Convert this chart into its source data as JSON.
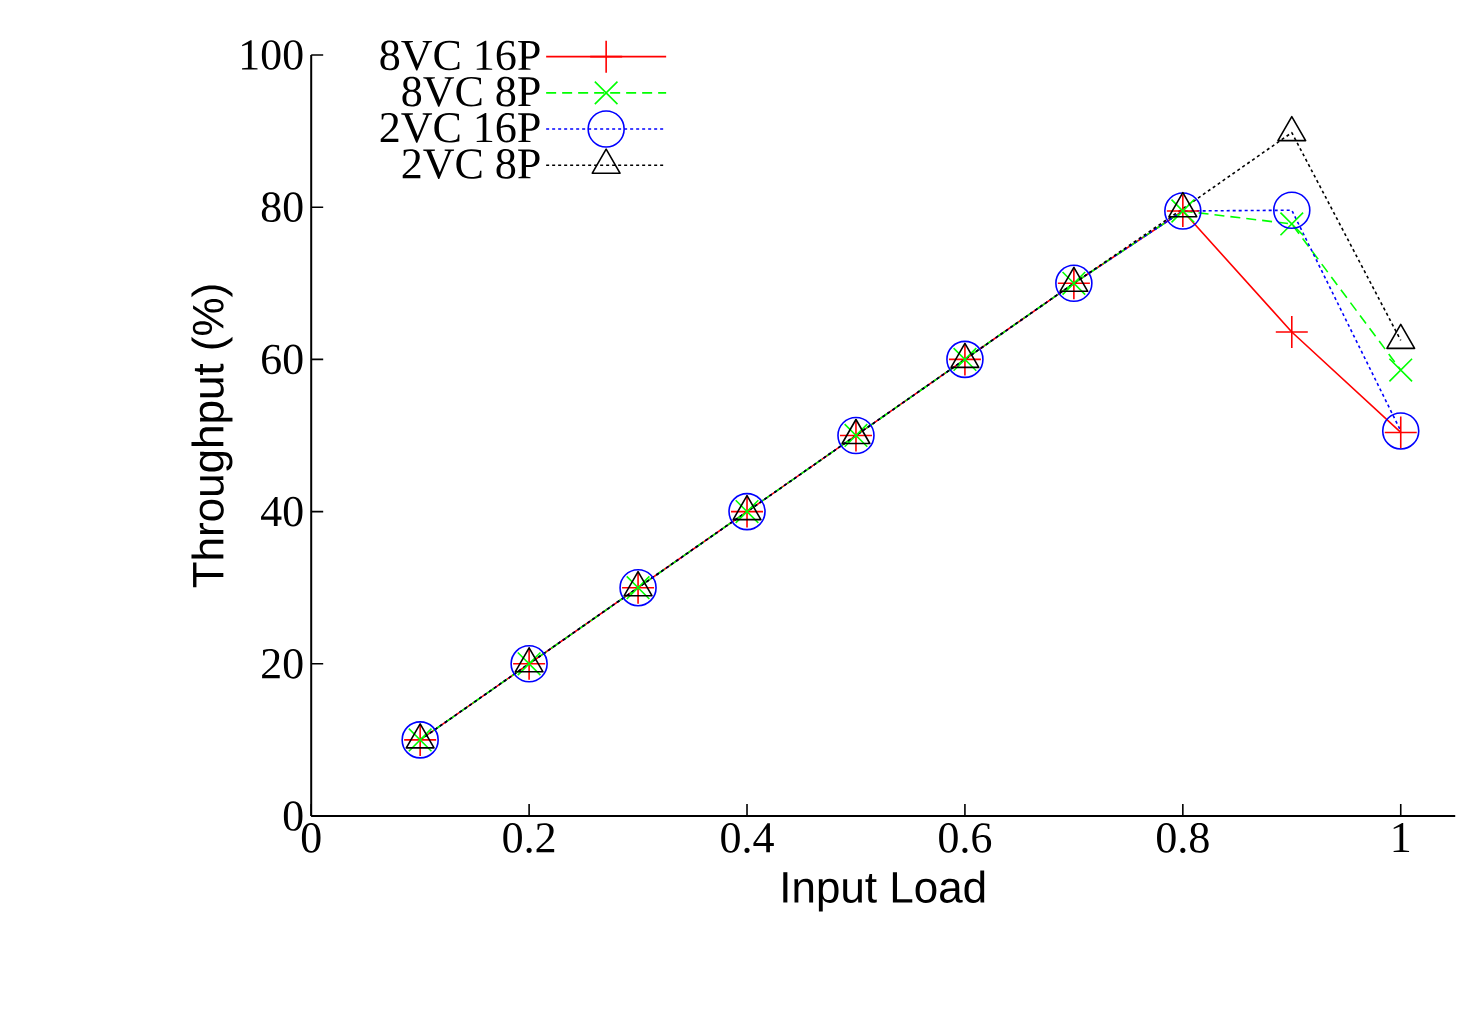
{
  "chart_data": {
    "type": "line",
    "xlabel": "Input Load",
    "ylabel": "Throughput (%)",
    "xlim": [
      0,
      1.05
    ],
    "xticks": [
      0,
      0.2,
      0.4,
      0.6,
      0.8,
      1
    ],
    "ylim": [
      0,
      100
    ],
    "yticks": [
      0,
      20,
      40,
      60,
      80,
      100
    ],
    "x": [
      0.1,
      0.2,
      0.3,
      0.4,
      0.5,
      0.6,
      0.7,
      0.8,
      0.9,
      1.0
    ],
    "legend": "top left",
    "grid": false,
    "series": [
      {
        "name": "8VC 16P",
        "color": "#ff0000",
        "marker": "plus",
        "line_style": "solid",
        "values": [
          10,
          20,
          30,
          40,
          50,
          60,
          70,
          79.5,
          63.6,
          50.4
        ]
      },
      {
        "name": "8VC 8P",
        "color": "#00ff00",
        "marker": "cross",
        "line_style": "dashed",
        "values": [
          10,
          20,
          30,
          40,
          50,
          60,
          70,
          79.5,
          77.8,
          58.6
        ]
      },
      {
        "name": "2VC 16P",
        "color": "#0000ff",
        "marker": "circle",
        "line_style": "dotted",
        "values": [
          10,
          20,
          30,
          40,
          50,
          60,
          70,
          79.5,
          79.6,
          50.6
        ]
      },
      {
        "name": "2VC 8P",
        "color": "#000000",
        "marker": "triangle",
        "line_style": "dotted",
        "values": [
          10,
          20,
          30,
          40,
          50,
          60,
          70,
          79.8,
          89.8,
          62.5
        ]
      }
    ]
  }
}
